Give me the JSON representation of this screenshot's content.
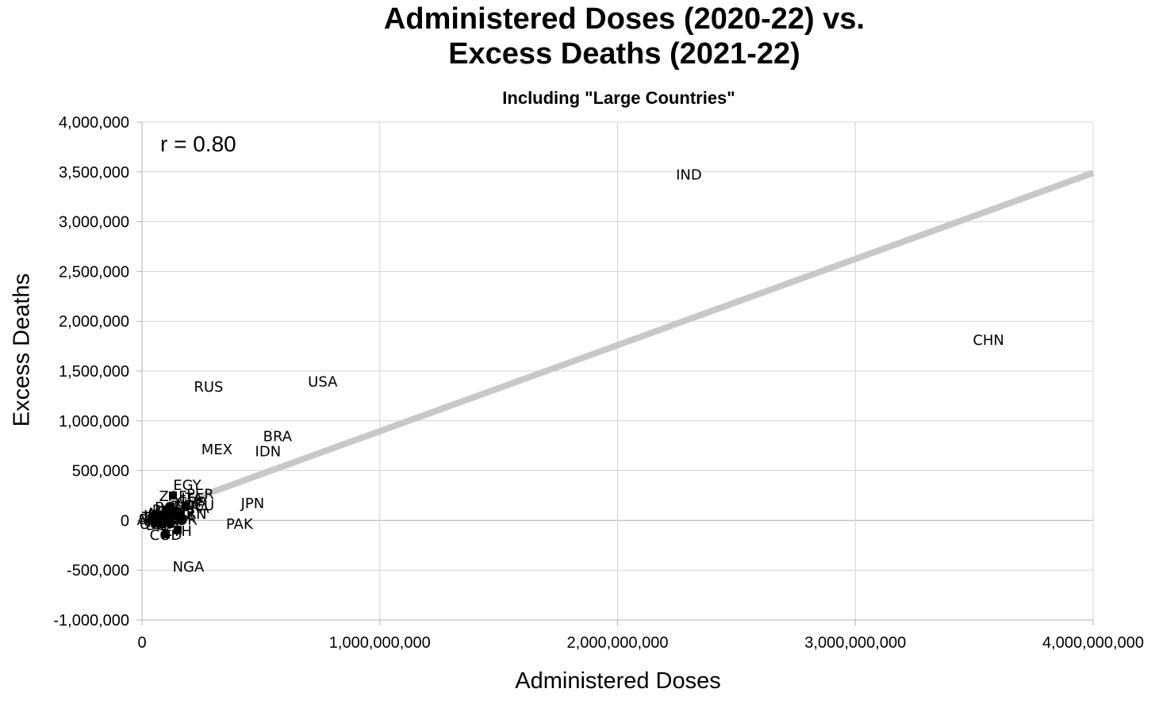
{
  "chart_data": {
    "type": "scatter",
    "title": "Administered Doses (2020-22) vs. Excess Deaths (2021-22)",
    "subtitle": "Including \"Large Countries\"",
    "xlabel": "Administered Doses",
    "ylabel": "Excess Deaths",
    "annotation": "r = 0.80",
    "xlim": [
      0,
      4000000000
    ],
    "ylim": [
      -1000000,
      4000000
    ],
    "x_ticks": [
      0,
      1000000000,
      2000000000,
      3000000000,
      4000000000
    ],
    "x_tick_labels": [
      "0",
      "1,000,000,000",
      "2,000,000,000",
      "3,000,000,000",
      "4,000,000,000"
    ],
    "y_ticks": [
      -1000000,
      -500000,
      0,
      500000,
      1000000,
      1500000,
      2000000,
      2500000,
      3000000,
      3500000,
      4000000
    ],
    "y_tick_labels": [
      "-1,000,000",
      "-500,000",
      "0",
      "500,000",
      "1,000,000",
      "1,500,000",
      "2,000,000",
      "2,500,000",
      "3,000,000",
      "3,500,000",
      "4,000,000"
    ],
    "grid": true,
    "trendline": {
      "x": [
        0,
        4000000000
      ],
      "y": [
        30000,
        3490000
      ],
      "color": "#c8c8c8"
    },
    "points": [
      {
        "label": "IND",
        "x": 2300000000,
        "y": 3480000
      },
      {
        "label": "CHN",
        "x": 3560000000,
        "y": 1820000
      },
      {
        "label": "USA",
        "x": 760000000,
        "y": 1400000
      },
      {
        "label": "RUS",
        "x": 280000000,
        "y": 1350000
      },
      {
        "label": "BRA",
        "x": 570000000,
        "y": 850000
      },
      {
        "label": "IDN",
        "x": 530000000,
        "y": 700000
      },
      {
        "label": "MEX",
        "x": 315000000,
        "y": 720000
      },
      {
        "label": "JPN",
        "x": 465000000,
        "y": 180000
      },
      {
        "label": "PAK",
        "x": 410000000,
        "y": -30000
      },
      {
        "label": "EGY",
        "x": 190000000,
        "y": 360000
      },
      {
        "label": "PER",
        "x": 245000000,
        "y": 270000
      },
      {
        "label": "ZAF",
        "x": 130000000,
        "y": 250000
      },
      {
        "label": "ITA",
        "x": 210000000,
        "y": 230000
      },
      {
        "label": "NGA",
        "x": 195000000,
        "y": -460000
      },
      {
        "label": "COD",
        "x": 100000000,
        "y": -140000
      },
      {
        "label": "ETH",
        "x": 150000000,
        "y": -100000
      },
      {
        "label": "IRN",
        "x": 220000000,
        "y": 70000
      },
      {
        "label": "GBR",
        "x": 210000000,
        "y": 190000
      },
      {
        "label": "DEU",
        "x": 240000000,
        "y": 160000
      },
      {
        "label": "TUR",
        "x": 185000000,
        "y": 150000
      },
      {
        "label": "FRA",
        "x": 225000000,
        "y": 130000
      },
      {
        "label": "BGD",
        "x": 120000000,
        "y": 140000
      },
      {
        "label": "PHL",
        "x": 100000000,
        "y": 110000
      },
      {
        "label": "ARG",
        "x": 150000000,
        "y": 90000
      },
      {
        "label": "COL",
        "x": 130000000,
        "y": 60000
      },
      {
        "label": "THA",
        "x": 160000000,
        "y": 40000
      },
      {
        "label": "VNM",
        "x": 110000000,
        "y": 20000
      },
      {
        "label": "KOR",
        "x": 170000000,
        "y": 10000
      },
      {
        "label": "UKR",
        "x": 90000000,
        "y": 50000
      },
      {
        "label": "POL",
        "x": 80000000,
        "y": 30000
      },
      {
        "label": "ESP",
        "x": 120000000,
        "y": -20000
      },
      {
        "label": "KEN",
        "x": 70000000,
        "y": 0
      },
      {
        "label": "TZA",
        "x": 60000000,
        "y": 40000
      },
      {
        "label": "SDN",
        "x": 50000000,
        "y": 20000
      },
      {
        "label": "DZA",
        "x": 80000000,
        "y": -40000
      },
      {
        "label": "MAR",
        "x": 90000000,
        "y": -10000
      },
      {
        "label": "IRQ",
        "x": 60000000,
        "y": 60000
      },
      {
        "label": "AFG",
        "x": 40000000,
        "y": 10000
      },
      {
        "label": "UGA",
        "x": 55000000,
        "y": -30000
      },
      {
        "label": "MMR",
        "x": 100000000,
        "y": 80000
      }
    ]
  }
}
